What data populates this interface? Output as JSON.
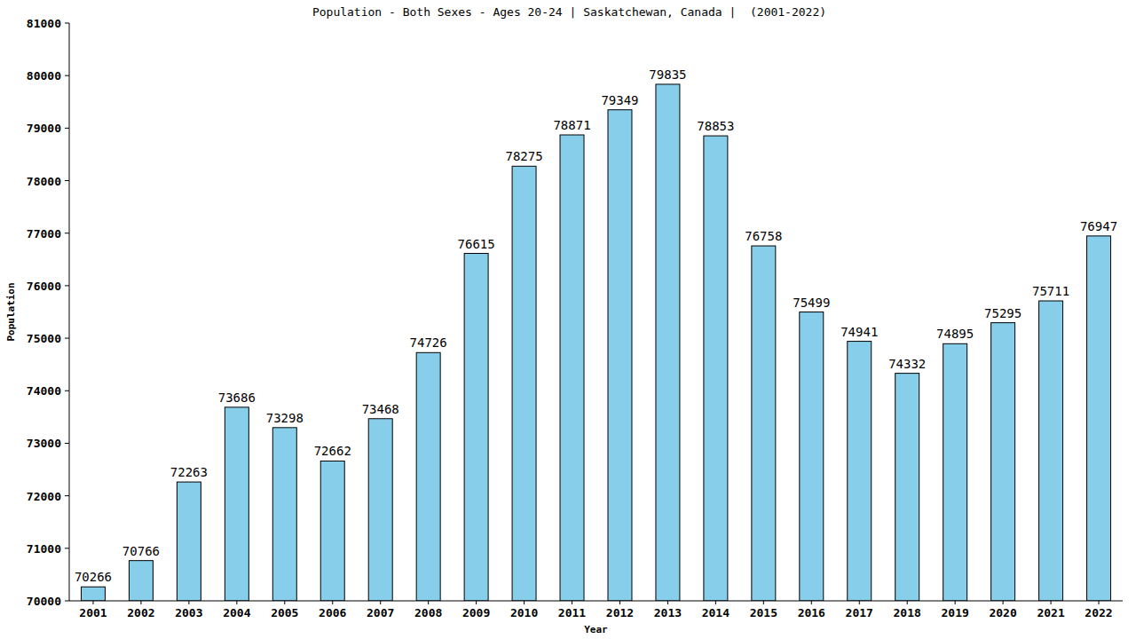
{
  "chart_data": {
    "type": "bar",
    "title": "Population - Both Sexes - Ages 20-24 | Saskatchewan, Canada |  (2001-2022)",
    "x_label": "Year",
    "y_label": "Population",
    "categories": [
      "2001",
      "2002",
      "2003",
      "2004",
      "2005",
      "2006",
      "2007",
      "2008",
      "2009",
      "2010",
      "2011",
      "2012",
      "2013",
      "2014",
      "2015",
      "2016",
      "2017",
      "2018",
      "2019",
      "2020",
      "2021",
      "2022"
    ],
    "values": [
      70266,
      70766,
      72263,
      73686,
      73298,
      72662,
      73468,
      74726,
      76615,
      78275,
      78871,
      79349,
      79835,
      78853,
      76758,
      75499,
      74941,
      74332,
      74895,
      75295,
      75711,
      76947
    ],
    "color": "#87ceeb",
    "ylim": [
      70000,
      81000
    ],
    "yticks": [
      70000,
      71000,
      72000,
      73000,
      74000,
      75000,
      76000,
      77000,
      78000,
      79000,
      80000,
      81000
    ],
    "grid": false,
    "data_labels": true
  }
}
